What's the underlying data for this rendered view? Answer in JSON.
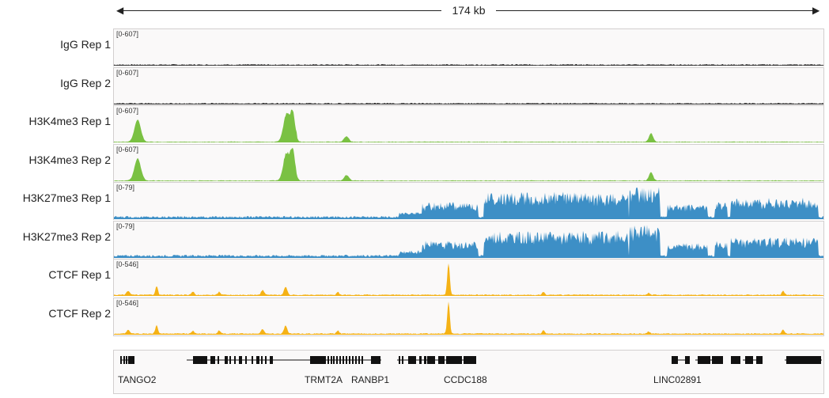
{
  "ruler": {
    "span_label": "174 kb"
  },
  "tracks": [
    {
      "name": "IgG Rep 1",
      "scale": "[0-607]",
      "color": "#333333",
      "kind": "flat"
    },
    {
      "name": "IgG Rep 2",
      "scale": "[0-607]",
      "color": "#333333",
      "kind": "flat"
    },
    {
      "name": "H3K4me3 Rep 1",
      "scale": "[0-607]",
      "color": "#7ac143",
      "kind": "peaks"
    },
    {
      "name": "H3K4me3 Rep 2",
      "scale": "[0-607]",
      "color": "#7ac143",
      "kind": "peaks"
    },
    {
      "name": "H3K27me3 Rep 1",
      "scale": "[0-79]",
      "color": "#3d8fc6",
      "kind": "broad"
    },
    {
      "name": "H3K27me3 Rep 2",
      "scale": "[0-79]",
      "color": "#3d8fc6",
      "kind": "broad"
    },
    {
      "name": "CTCF Rep 1",
      "scale": "[0-546]",
      "color": "#f5b216",
      "kind": "ctcf"
    },
    {
      "name": "CTCF Rep 2",
      "scale": "[0-546]",
      "color": "#f5b216",
      "kind": "ctcf"
    }
  ],
  "genes": [
    {
      "name": "TANGO2"
    },
    {
      "name": "TRMT2A"
    },
    {
      "name": "RANBP1"
    },
    {
      "name": "CCDC188"
    },
    {
      "name": "LINC02891"
    }
  ]
}
